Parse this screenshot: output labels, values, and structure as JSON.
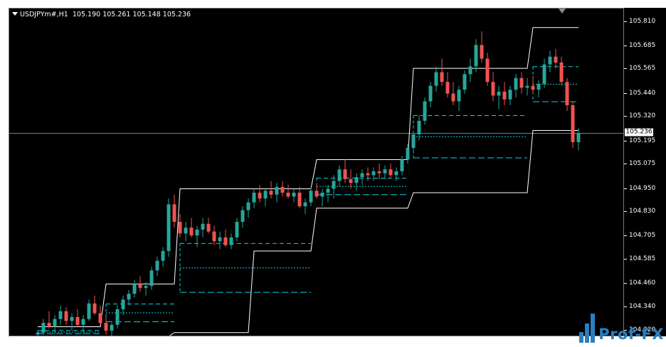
{
  "header": {
    "symbol": "USDJPYm#,H1",
    "open": "105.190",
    "high": "105.261",
    "low": "105.148",
    "close": "105.236"
  },
  "price_axis": {
    "ticks": [
      "105.810",
      "105.685",
      "105.565",
      "105.440",
      "105.320",
      "105.195",
      "105.075",
      "104.950",
      "104.830",
      "104.705",
      "104.585",
      "104.460",
      "104.340",
      "104.220"
    ],
    "current_price_label": "105.236"
  },
  "watermark": {
    "text": "Prof-FX"
  },
  "colors": {
    "background": "#000000",
    "bull_candle": "#26a69a",
    "bear_candle": "#ef5350",
    "channel": "#ffffff",
    "pivot_lines": "#00d4e6",
    "current_price_line": "#8fa8b8"
  },
  "chart_data": {
    "type": "candlestick",
    "title": "USDJPYm#,H1",
    "timeframe": "H1",
    "ylim": [
      104.19,
      105.85
    ],
    "grid": false,
    "candles": [
      [
        104.2,
        104.22,
        104.19,
        104.21
      ],
      [
        104.21,
        104.28,
        104.2,
        104.26
      ],
      [
        104.26,
        104.32,
        104.23,
        104.24
      ],
      [
        104.24,
        104.3,
        104.2,
        104.28
      ],
      [
        104.28,
        104.35,
        104.25,
        104.32
      ],
      [
        104.32,
        104.34,
        104.25,
        104.27
      ],
      [
        104.27,
        104.31,
        104.22,
        104.29
      ],
      [
        104.29,
        104.33,
        104.24,
        104.25
      ],
      [
        104.25,
        104.3,
        104.2,
        104.28
      ],
      [
        104.28,
        104.38,
        104.27,
        104.36
      ],
      [
        104.36,
        104.4,
        104.3,
        104.31
      ],
      [
        104.31,
        104.35,
        104.25,
        104.26
      ],
      [
        104.26,
        104.29,
        104.2,
        104.22
      ],
      [
        104.22,
        104.26,
        104.19,
        104.25
      ],
      [
        104.25,
        104.35,
        104.23,
        104.33
      ],
      [
        104.33,
        104.4,
        104.3,
        104.38
      ],
      [
        104.38,
        104.43,
        104.35,
        104.41
      ],
      [
        104.41,
        104.48,
        104.39,
        104.46
      ],
      [
        104.46,
        104.5,
        104.42,
        104.44
      ],
      [
        104.44,
        104.47,
        104.4,
        104.45
      ],
      [
        104.45,
        104.55,
        104.43,
        104.53
      ],
      [
        104.53,
        104.6,
        104.5,
        104.58
      ],
      [
        104.58,
        104.65,
        104.55,
        104.63
      ],
      [
        104.63,
        104.9,
        104.6,
        104.87
      ],
      [
        104.87,
        104.92,
        104.75,
        104.78
      ],
      [
        104.78,
        104.82,
        104.7,
        104.72
      ],
      [
        104.72,
        104.78,
        104.68,
        104.75
      ],
      [
        104.75,
        104.8,
        104.7,
        104.71
      ],
      [
        104.71,
        104.76,
        104.65,
        104.74
      ],
      [
        104.74,
        104.8,
        104.7,
        104.77
      ],
      [
        104.77,
        104.8,
        104.72,
        104.73
      ],
      [
        104.73,
        104.76,
        104.66,
        104.68
      ],
      [
        104.68,
        104.73,
        104.64,
        104.7
      ],
      [
        104.7,
        104.74,
        104.65,
        104.66
      ],
      [
        104.66,
        104.72,
        104.64,
        104.7
      ],
      [
        104.7,
        104.8,
        104.68,
        104.78
      ],
      [
        104.78,
        104.86,
        104.75,
        104.84
      ],
      [
        104.84,
        104.9,
        104.8,
        104.88
      ],
      [
        104.88,
        104.95,
        104.85,
        104.93
      ],
      [
        104.93,
        104.97,
        104.88,
        104.9
      ],
      [
        104.9,
        104.95,
        104.86,
        104.94
      ],
      [
        104.94,
        104.99,
        104.9,
        104.92
      ],
      [
        104.92,
        104.98,
        104.88,
        104.96
      ],
      [
        104.96,
        104.99,
        104.91,
        104.93
      ],
      [
        104.93,
        104.97,
        104.9,
        104.91
      ],
      [
        104.91,
        104.95,
        104.88,
        104.93
      ],
      [
        104.93,
        104.96,
        104.85,
        104.86
      ],
      [
        104.86,
        104.9,
        104.82,
        104.88
      ],
      [
        104.88,
        104.96,
        104.86,
        104.94
      ],
      [
        104.94,
        104.98,
        104.9,
        104.91
      ],
      [
        104.91,
        104.95,
        104.86,
        104.93
      ],
      [
        104.93,
        104.97,
        104.88,
        104.95
      ],
      [
        104.95,
        105.02,
        104.9,
        104.99
      ],
      [
        104.99,
        105.07,
        104.96,
        105.05
      ],
      [
        105.05,
        105.1,
        104.98,
        105.0
      ],
      [
        105.0,
        105.05,
        104.95,
        104.98
      ],
      [
        104.98,
        105.03,
        104.94,
        105.01
      ],
      [
        105.01,
        105.05,
        104.97,
        105.03
      ],
      [
        105.03,
        105.06,
        104.99,
        105.02
      ],
      [
        105.02,
        105.06,
        104.99,
        105.04
      ],
      [
        105.04,
        105.08,
        105.0,
        105.03
      ],
      [
        105.03,
        105.07,
        105.0,
        105.05
      ],
      [
        105.05,
        105.08,
        105.01,
        105.02
      ],
      [
        105.02,
        105.06,
        104.99,
        105.04
      ],
      [
        105.04,
        105.12,
        105.02,
        105.1
      ],
      [
        105.1,
        105.18,
        105.08,
        105.16
      ],
      [
        105.16,
        105.25,
        105.14,
        105.23
      ],
      [
        105.23,
        105.33,
        105.2,
        105.3
      ],
      [
        105.3,
        105.42,
        105.28,
        105.4
      ],
      [
        105.4,
        105.5,
        105.37,
        105.48
      ],
      [
        105.48,
        105.58,
        105.45,
        105.55
      ],
      [
        105.55,
        105.62,
        105.48,
        105.5
      ],
      [
        105.5,
        105.55,
        105.42,
        105.44
      ],
      [
        105.44,
        105.5,
        105.38,
        105.4
      ],
      [
        105.4,
        105.48,
        105.35,
        105.46
      ],
      [
        105.46,
        105.56,
        105.44,
        105.54
      ],
      [
        105.54,
        105.62,
        105.5,
        105.58
      ],
      [
        105.58,
        105.72,
        105.55,
        105.69
      ],
      [
        105.69,
        105.76,
        105.6,
        105.62
      ],
      [
        105.62,
        105.65,
        105.48,
        105.5
      ],
      [
        105.5,
        105.55,
        105.4,
        105.43
      ],
      [
        105.43,
        105.48,
        105.36,
        105.45
      ],
      [
        105.45,
        105.5,
        105.38,
        105.41
      ],
      [
        105.41,
        105.48,
        105.38,
        105.46
      ],
      [
        105.46,
        105.54,
        105.42,
        105.52
      ],
      [
        105.52,
        105.55,
        105.44,
        105.47
      ],
      [
        105.47,
        105.52,
        105.43,
        105.48
      ],
      [
        105.48,
        105.53,
        105.44,
        105.46
      ],
      [
        105.46,
        105.51,
        105.42,
        105.49
      ],
      [
        105.49,
        105.62,
        105.47,
        105.59
      ],
      [
        105.59,
        105.66,
        105.55,
        105.63
      ],
      [
        105.63,
        105.67,
        105.57,
        105.6
      ],
      [
        105.6,
        105.63,
        105.48,
        105.5
      ],
      [
        105.5,
        105.52,
        105.35,
        105.38
      ],
      [
        105.38,
        105.4,
        105.16,
        105.19
      ],
      [
        105.19,
        105.261,
        105.148,
        105.236
      ]
    ],
    "channel_upper": [
      [
        0,
        104.24
      ],
      [
        11,
        104.24
      ],
      [
        12,
        104.46
      ],
      [
        24,
        104.46
      ],
      [
        25,
        104.95
      ],
      [
        48,
        104.95
      ],
      [
        49,
        105.1
      ],
      [
        65,
        105.1
      ],
      [
        66,
        105.57
      ],
      [
        86,
        105.57
      ],
      [
        87,
        105.78
      ],
      [
        95,
        105.78
      ]
    ],
    "channel_lower": [
      [
        0,
        104.19
      ],
      [
        23,
        104.19
      ],
      [
        24,
        104.21
      ],
      [
        37,
        104.21
      ],
      [
        38,
        104.63
      ],
      [
        48,
        104.63
      ],
      [
        49,
        104.85
      ],
      [
        65,
        104.85
      ],
      [
        66,
        104.93
      ],
      [
        86,
        104.93
      ],
      [
        87,
        105.25
      ],
      [
        95,
        105.25
      ]
    ]
  }
}
